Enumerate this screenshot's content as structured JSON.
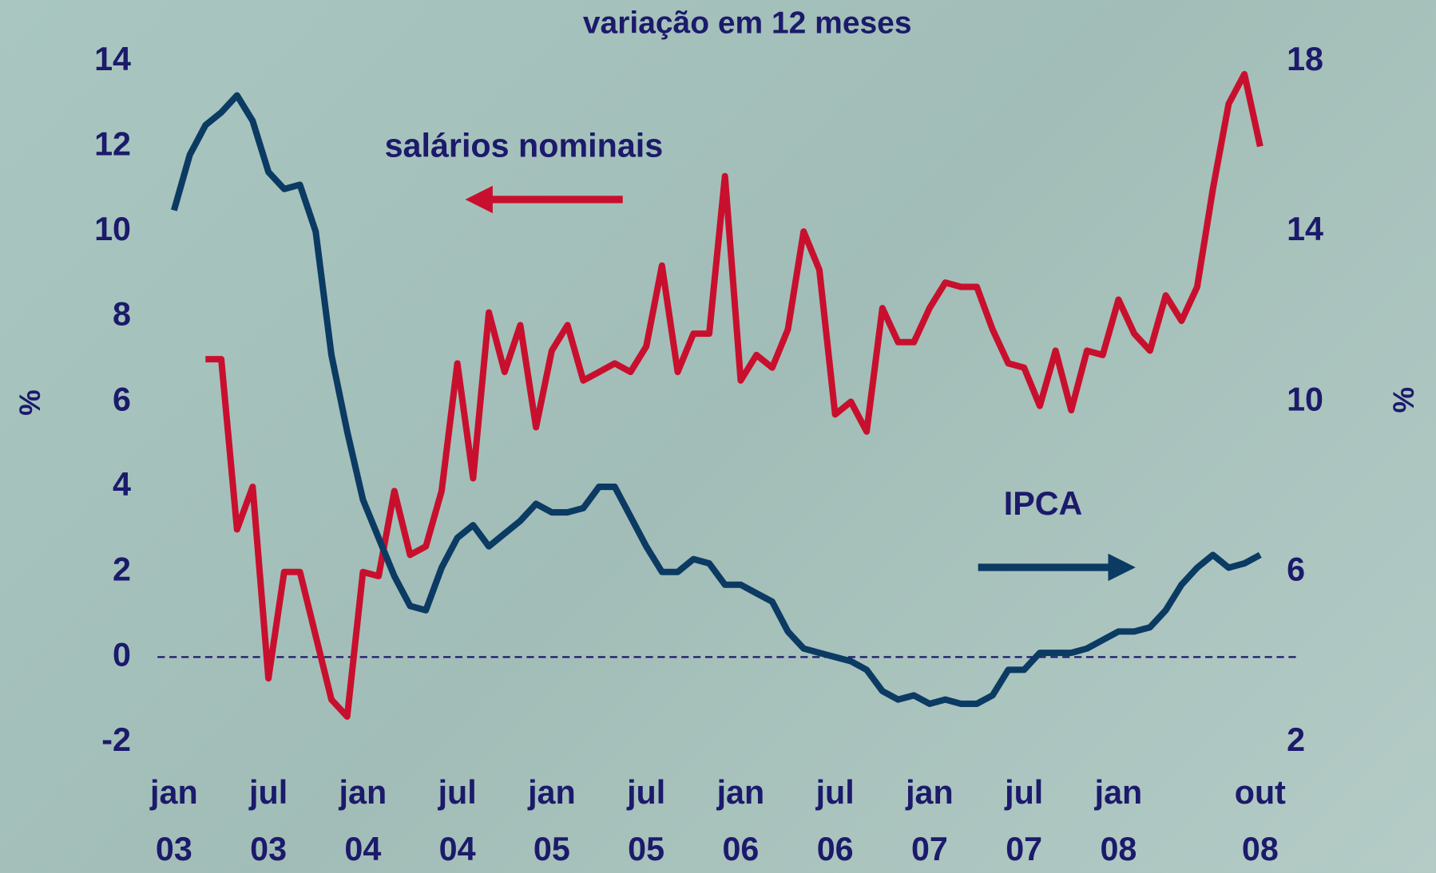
{
  "chart_data": {
    "type": "line",
    "title": "variação em 12 meses",
    "y_label": "%",
    "y2_label": "%",
    "categories": [
      "jan 03",
      null,
      null,
      null,
      null,
      null,
      "jul 03",
      null,
      null,
      null,
      null,
      null,
      "jan 04",
      null,
      null,
      null,
      null,
      null,
      "jul 04",
      null,
      null,
      null,
      null,
      null,
      "jan 05",
      null,
      null,
      null,
      null,
      null,
      "jul 05",
      null,
      null,
      null,
      null,
      null,
      "jan 06",
      null,
      null,
      null,
      null,
      null,
      "jul 06",
      null,
      null,
      null,
      null,
      null,
      "jan 07",
      null,
      null,
      null,
      null,
      null,
      "jul 07",
      null,
      null,
      null,
      null,
      null,
      "jan 08",
      null,
      null,
      null,
      null,
      null,
      null,
      null,
      null,
      "out 08"
    ],
    "ylim": [
      -2,
      14
    ],
    "yticks": [
      -2,
      0,
      2,
      4,
      6,
      8,
      10,
      12,
      14
    ],
    "y2lim": [
      2,
      18
    ],
    "y2ticks": [
      2,
      6,
      10,
      14,
      18
    ],
    "series": [
      {
        "name": "salários nominais",
        "color": "#c8102e",
        "values": [
          null,
          null,
          7.0,
          7.0,
          3.0,
          4.0,
          -0.5,
          2.0,
          2.0,
          0.5,
          -1.0,
          -1.4,
          2.0,
          1.9,
          3.9,
          2.4,
          2.6,
          3.9,
          6.9,
          4.2,
          8.1,
          6.7,
          7.8,
          5.4,
          7.2,
          7.8,
          6.5,
          6.7,
          6.9,
          6.7,
          7.3,
          9.2,
          6.7,
          7.6,
          7.6,
          11.3,
          6.5,
          7.1,
          6.8,
          7.7,
          10.0,
          9.1,
          5.7,
          6.0,
          5.3,
          8.2,
          7.4,
          7.4,
          8.2,
          8.8,
          8.7,
          8.7,
          7.7,
          6.9,
          6.8,
          5.9,
          7.2,
          5.8,
          7.2,
          7.1,
          8.4,
          7.6,
          7.2,
          8.5,
          7.9,
          8.7,
          11.0,
          13.0,
          13.7,
          12.0
        ]
      },
      {
        "name": "IPCA",
        "color": "#0b3a63",
        "axis": "y2",
        "values": [
          14.5,
          15.8,
          16.5,
          16.8,
          17.2,
          16.6,
          15.4,
          15.0,
          15.1,
          14.0,
          11.1,
          9.3,
          7.7,
          6.8,
          5.9,
          5.2,
          5.1,
          6.1,
          6.8,
          7.1,
          6.6,
          6.9,
          7.2,
          7.6,
          7.4,
          7.4,
          7.5,
          8.0,
          8.0,
          7.3,
          6.6,
          6.0,
          6.0,
          6.3,
          6.2,
          5.7,
          5.7,
          5.5,
          5.3,
          4.6,
          4.2,
          4.1,
          4.0,
          3.9,
          3.7,
          3.2,
          3.0,
          3.1,
          2.9,
          3.0,
          2.9,
          2.9,
          3.1,
          3.7,
          3.7,
          4.1,
          4.1,
          4.1,
          4.2,
          4.4,
          4.6,
          4.6,
          4.7,
          5.1,
          5.7,
          6.1,
          6.4,
          6.1,
          6.2,
          6.4
        ]
      }
    ]
  }
}
